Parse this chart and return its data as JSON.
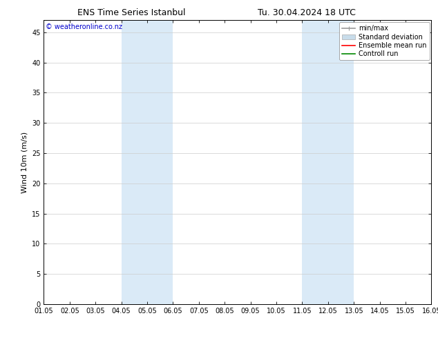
{
  "title_left": "ENS Time Series Istanbul",
  "title_right": "Tu. 30.04.2024 18 UTC",
  "ylabel": "Wind 10m (m/s)",
  "ylim": [
    0,
    47
  ],
  "yticks": [
    0,
    5,
    10,
    15,
    20,
    25,
    30,
    35,
    40,
    45
  ],
  "xtick_labels": [
    "01.05",
    "02.05",
    "03.05",
    "04.05",
    "05.05",
    "06.05",
    "07.05",
    "08.05",
    "09.05",
    "10.05",
    "11.05",
    "12.05",
    "13.05",
    "14.05",
    "15.05",
    "16.05"
  ],
  "xtick_positions": [
    0,
    1,
    2,
    3,
    4,
    5,
    6,
    7,
    8,
    9,
    10,
    11,
    12,
    13,
    14,
    15
  ],
  "background_color": "#ffffff",
  "plot_bg_color": "#ffffff",
  "shaded_regions": [
    {
      "x_start": 3,
      "x_end": 5,
      "color": "#daeaf7"
    },
    {
      "x_start": 10,
      "x_end": 12,
      "color": "#daeaf7"
    }
  ],
  "legend_items": [
    {
      "label": "min/max",
      "color": "#999999",
      "lw": 1.2,
      "style": "minmax"
    },
    {
      "label": "Standard deviation",
      "color": "#c8dcea",
      "lw": 8,
      "style": "bar"
    },
    {
      "label": "Ensemble mean run",
      "color": "#ff0000",
      "lw": 1.2,
      "style": "line"
    },
    {
      "label": "Controll run",
      "color": "#008800",
      "lw": 1.2,
      "style": "line"
    }
  ],
  "watermark_text": "© weatheronline.co.nz",
  "watermark_color": "#0000cc",
  "watermark_fontsize": 7,
  "title_fontsize": 9,
  "axis_label_fontsize": 8,
  "tick_fontsize": 7,
  "legend_fontsize": 7,
  "grid_color": "#cccccc",
  "spine_color": "#000000"
}
